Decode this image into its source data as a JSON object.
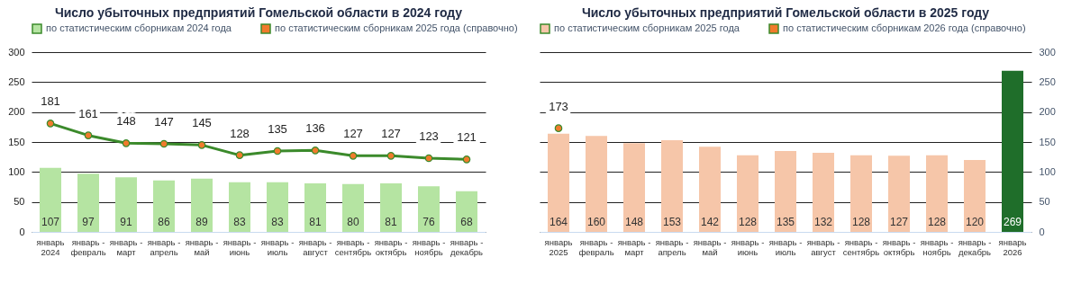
{
  "chart_data": [
    {
      "type": "bar",
      "title": "Число убыточных предприятий Гомельской области в 2024 году",
      "categories": [
        "январь 2024",
        "январь - февраль",
        "январь - март",
        "январь - апрель",
        "январь - май",
        "январь - июнь",
        "январь - июль",
        "январь - август",
        "январь - сентябрь",
        "январь - октябрь",
        "январь - ноябрь",
        "январь - декабрь"
      ],
      "series": [
        {
          "name": "по статистическим сборникам 2024 года",
          "color": "#b5e4a2",
          "values": [
            107,
            97,
            91,
            86,
            89,
            83,
            83,
            81,
            80,
            81,
            76,
            68
          ]
        },
        {
          "name": "по статистическим сборникам 2025 года (справочно)",
          "type": "line",
          "color": "#3b8a2b",
          "values": [
            181,
            161,
            148,
            147,
            145,
            128,
            135,
            136,
            127,
            127,
            123,
            121
          ]
        }
      ],
      "ylim": [
        0,
        300
      ],
      "yticks": [
        0,
        50,
        100,
        150,
        200,
        250,
        300
      ],
      "grid": "y",
      "legend": "top",
      "data_labels": true,
      "marker": "circle"
    },
    {
      "type": "bar",
      "title": "Число убыточных предприятий Гомельской области в 2025 году",
      "categories": [
        "январь 2025",
        "январь - февраль",
        "январь - март",
        "январь - апрель",
        "январь - май",
        "январь - июнь",
        "январь - июль",
        "январь - август",
        "январь - сентябрь",
        "январь - октябрь",
        "январь - ноябрь",
        "январь - декабрь",
        "январь 2026"
      ],
      "series": [
        {
          "name": "по статистическим сборникам 2025 года",
          "color": "#f6c6a9",
          "axis": "y2",
          "values": [
            164,
            160,
            148,
            153,
            142,
            128,
            135,
            132,
            128,
            127,
            128,
            120,
            269
          ],
          "colors": [
            "#f6c6a9",
            "#f6c6a9",
            "#f6c6a9",
            "#f6c6a9",
            "#f6c6a9",
            "#f6c6a9",
            "#f6c6a9",
            "#f6c6a9",
            "#f6c6a9",
            "#f6c6a9",
            "#f6c6a9",
            "#f6c6a9",
            "#1f6e2a"
          ]
        },
        {
          "name": "по статистическим сборникам 2026 года (справочно)",
          "type": "line",
          "color": "#3b8a2b",
          "axis": "y2",
          "values": [
            173,
            null,
            null,
            null,
            null,
            null,
            null,
            null,
            null,
            null,
            null,
            null,
            null
          ]
        }
      ],
      "y2lim": [
        0,
        300
      ],
      "y2ticks": [
        0,
        50,
        100,
        150,
        200,
        250,
        300
      ],
      "grid": "y",
      "legend": "top",
      "data_labels": true,
      "marker": "circle"
    }
  ]
}
